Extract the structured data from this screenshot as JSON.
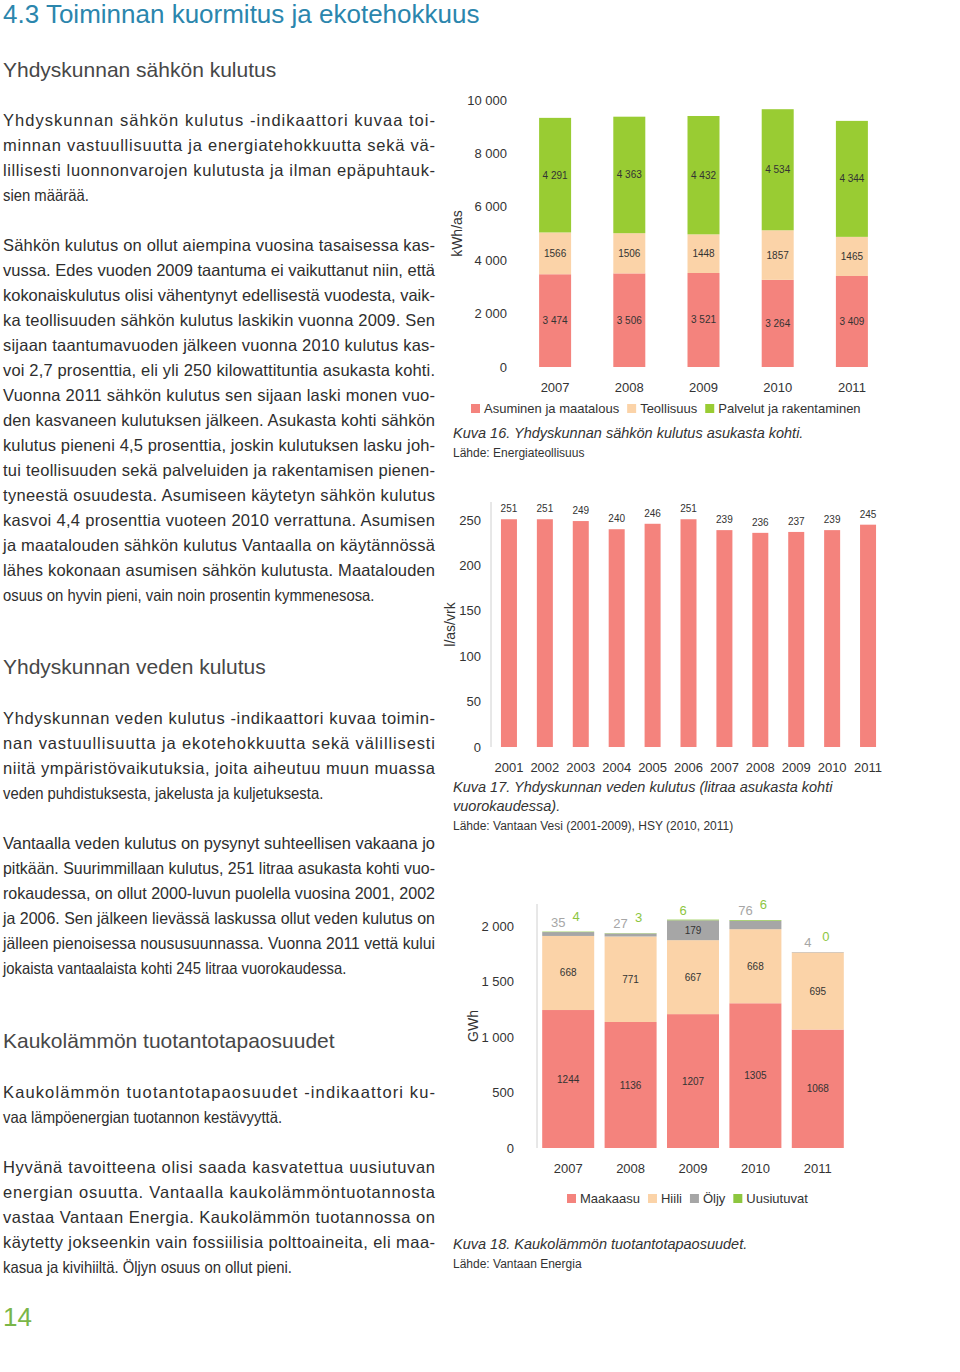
{
  "page": {
    "heading": "4.3 Toiminnan kuormitus ja ekotehokkuus",
    "sections": [
      {
        "title": "Yhdyskunnan sähkön kulutus",
        "paragraphs": [
          [
            "Yhdyskunnan sähkön kulutus -indikaattori kuvaa toi-",
            "minnan vastuullisuutta ja energiatehokkuutta sekä vä-",
            "lillisesti luonnonvarojen kulutusta ja ilman epäpuhtauk-",
            "sien määrää."
          ],
          [
            "Sähkön kulutus on ollut aiempina vuosina tasaisessa kas-",
            "vussa. Edes vuoden 2009 taantuma ei vaikuttanut niin, että",
            "kokonaiskulutus olisi vähentynyt edellisestä vuodesta, vaik-",
            "ka teollisuuden sähkön kulutus laskikin vuonna 2009. Sen",
            "sijaan taantumavuoden jälkeen vuonna 2010 kulutus kas-",
            "voi 2,7 prosenttia, eli yli 250 kilowattituntia asukasta kohti.",
            "Vuonna 2011 sähkön kulutus sen sijaan laski monen vuo-",
            "den kasvaneen kulutuksen jälkeen. Asukasta kohti sähkön",
            "kulutus pieneni 4,5 prosenttia, joskin kulutuksen lasku joh-",
            "tui teollisuuden sekä palveluiden ja rakentamisen pienen-",
            "tyneestä osuudesta. Asumiseen käytetyn sähkön kulutus",
            "kasvoi 4,4 prosenttia vuoteen 2010 verrattuna. Asumisen",
            "ja maatalouden sähkön kulutus Vantaalla on käytännössä",
            "lähes kokonaan asumisen sähkön kulutusta. Maatalouden",
            "osuus on hyvin pieni, vain noin prosentin kymmenesosa."
          ]
        ]
      },
      {
        "title": "Yhdyskunnan veden kulutus",
        "paragraphs": [
          [
            "Yhdyskunnan veden kulutus -indikaattori kuvaa toimin-",
            "nan vastuullisuutta ja ekotehokkuutta sekä välillisesti",
            "niitä ympäristövaikutuksia, joita aiheutuu muun muassa",
            "veden puhdistuksesta, jakelusta ja kuljetuksesta."
          ],
          [
            "Vantaalla veden kulutus on pysynyt suhteellisen vakaana jo",
            "pitkään. Suurimmillaan kulutus, 251 litraa asukasta kohti vuo-",
            "rokaudessa, on ollut 2000-luvun puolella vuosina 2001, 2002",
            "ja 2006. Sen jälkeen lievässä laskussa ollut veden kulutus on",
            "jälleen pienoisessa noususuunnassa. Vuonna 2011 vettä kului",
            "jokaista vantaalaista kohti 245 litraa vuorokaudessa."
          ]
        ]
      },
      {
        "title": "Kaukolämmön tuotantotapaosuudet",
        "paragraphs": [
          [
            "Kaukolämmön tuotantotapaosuudet -indikaattori ku-",
            "vaa lämpöenergian tuotannon kestävyyttä."
          ],
          [
            "Hyvänä tavoitteena olisi saada kasvatettua uusiutuvan",
            "energian osuutta. Vantaalla kaukolämmöntuotannosta",
            "vastaa Vantaan Energia. Kaukolämmön tuotannossa on",
            "käytetty jokseenkin vain fossiilisia polttoaineita, eli maa-",
            "kasua ja kivihiiltä. Öljyn osuus on ollut pieni."
          ]
        ]
      }
    ],
    "page_number": 14
  },
  "chart_data": [
    {
      "type": "bar",
      "stacked": true,
      "data_labels": true,
      "title": "Kuva 16. Yhdyskunnan sähkön kulutus asukasta kohti.",
      "subtitle": "Lähde: Energiateollisuus",
      "y_label": "kWh/as",
      "categories": [
        "2007",
        "2008",
        "2009",
        "2010",
        "2011"
      ],
      "ylim": [
        0,
        10000
      ],
      "yticks": [
        0,
        {
          "value": 2000,
          "label": "2 000"
        },
        {
          "value": 4000,
          "label": "4 000"
        },
        {
          "value": 6000,
          "label": "6 000"
        },
        {
          "value": 8000,
          "label": "8 000"
        },
        {
          "value": 10000,
          "label": "10 000"
        }
      ],
      "legend": "bottom",
      "series": [
        {
          "name": "Asuminen ja maatalous",
          "color": "#f4837d",
          "values": [
            3474,
            3506,
            3521,
            3264,
            3409
          ],
          "value_labels": [
            "3 474",
            "3 506",
            "3 521",
            "3 264",
            "3 409"
          ]
        },
        {
          "name": "Teollisuus",
          "color": "#fbd3a8",
          "values": [
            1566,
            1506,
            1448,
            1857,
            1465
          ]
        },
        {
          "name": "Palvelut ja rakentaminen",
          "color": "#99cc33",
          "values": [
            4291,
            4363,
            4432,
            4534,
            4344
          ],
          "value_labels": [
            "4 291",
            "4 363",
            "4 432",
            "4 534",
            "4 344"
          ]
        }
      ]
    },
    {
      "type": "bar",
      "data_labels": true,
      "title": "Kuva 17. Yhdyskunnan veden kulutus (litraa asukasta kohti vuorokaudessa).",
      "subtitle": "Lähde: Vantaan Vesi (2001-2009), HSY (2010, 2011)",
      "y_label": "l/as/vrk",
      "categories": [
        "2001",
        "2002",
        "2003",
        "2004",
        "2005",
        "2006",
        "2007",
        "2008",
        "2009",
        "2010",
        "2011"
      ],
      "values": [
        251,
        251,
        249,
        240,
        246,
        251,
        239,
        236,
        237,
        239,
        245
      ],
      "color": "#f4837d",
      "ylim": [
        0,
        270
      ],
      "yticks": [
        0,
        50,
        100,
        150,
        200,
        250
      ]
    },
    {
      "type": "bar",
      "stacked": true,
      "data_labels": true,
      "title": "Kuva 18. Kaukolämmön tuotantotapaosuudet.",
      "subtitle": "Lähde: Vantaan Energia",
      "y_label": "GWh",
      "categories": [
        "2007",
        "2008",
        "2009",
        "2010",
        "2011"
      ],
      "ylim": [
        0,
        2200
      ],
      "yticks": [
        0,
        500,
        {
          "value": 1000,
          "label": "1 000"
        },
        {
          "value": 1500,
          "label": "1 500"
        },
        {
          "value": 2000,
          "label": "2 000"
        }
      ],
      "legend": "bottom",
      "series": [
        {
          "name": "Maakaasu",
          "color": "#f4837d",
          "values": [
            1244,
            1136,
            1207,
            1305,
            1068
          ]
        },
        {
          "name": "Hiili",
          "color": "#fbd3a8",
          "values": [
            668,
            771,
            667,
            668,
            695
          ]
        },
        {
          "name": "Öljy",
          "color": "#a6a6a6",
          "values": [
            35,
            27,
            179,
            76,
            4
          ]
        },
        {
          "name": "Uusiutuvat",
          "color": "#8dc63f",
          "values": [
            4,
            3,
            6,
            6,
            0
          ]
        }
      ]
    }
  ]
}
